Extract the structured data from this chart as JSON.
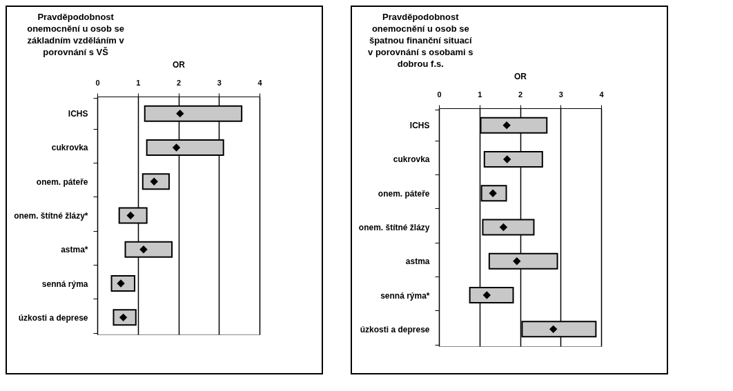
{
  "chart_data": [
    {
      "type": "bar",
      "title": "Pravděpodobnost onemocnění u osob se základním vzděláním v porovnání s VŠ",
      "xlabel": "OR",
      "orientation": "horizontal",
      "categories": [
        "ICHS",
        "cukrovka",
        "onem. páteře",
        "onem. štítné žlázy*",
        "astma*",
        "senná rýma",
        "úzkosti a deprese"
      ],
      "xlim": [
        0,
        4
      ],
      "xticks": [
        0,
        1,
        2,
        3,
        4
      ],
      "grid": "x",
      "marker": "diamond",
      "series": [
        {
          "color": "#c8c8c8",
          "base": [
            1.17,
            1.22,
            1.12,
            0.54,
            0.69,
            0.35,
            0.4
          ],
          "values": [
            2.39,
            1.89,
            0.65,
            0.68,
            1.15,
            0.57,
            0.55
          ]
        },
        {
          "type": "scatter",
          "color": "#000000",
          "values": [
            2.04,
            1.95,
            1.4,
            0.82,
            1.14,
            0.58,
            0.64
          ]
        }
      ]
    },
    {
      "type": "bar",
      "title": "Pravděpodobnost onemocnění u osob se špatnou finanční situací v porovnání s osobami s dobrou f.s.",
      "xlabel": "OR",
      "orientation": "horizontal",
      "categories": [
        "ICHS",
        "cukrovka",
        "onem. páteře",
        "onem. štítné žlázy",
        "astma",
        "senná rýma*",
        "úzkosti a deprese"
      ],
      "xlim": [
        0,
        4
      ],
      "xticks": [
        0,
        1,
        2,
        3,
        4
      ],
      "grid": "x",
      "marker": "diamond",
      "series": [
        {
          "color": "#c8c8c8",
          "base": [
            1.03,
            1.12,
            1.05,
            1.08,
            1.24,
            0.76,
            2.05
          ],
          "values": [
            1.63,
            1.43,
            0.61,
            1.26,
            1.68,
            1.07,
            1.82
          ]
        },
        {
          "type": "scatter",
          "color": "#000000",
          "values": [
            1.67,
            1.68,
            1.33,
            1.59,
            1.92,
            1.18,
            2.82
          ]
        }
      ]
    }
  ]
}
